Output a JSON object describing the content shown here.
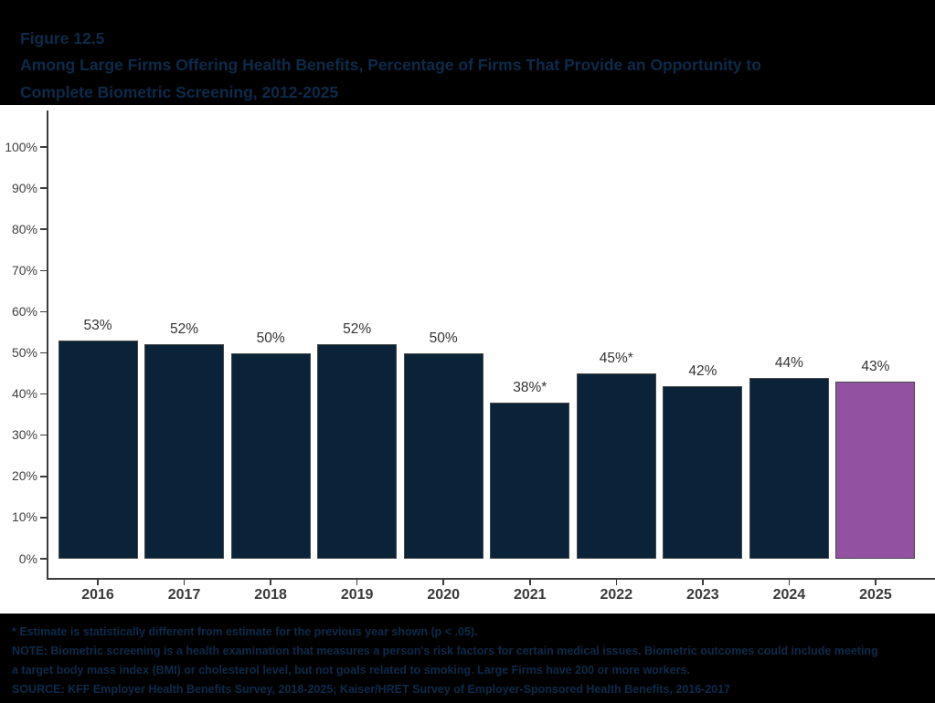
{
  "header": {
    "figure_label": "Figure 12.5",
    "title": "Among Large Firms Offering Health Benefits, Percentage of Firms That Provide an Opportunity to Complete Biometric Screening, 2012-2025"
  },
  "chart_data": {
    "type": "bar",
    "title": "Among Large Firms Offering Health Benefits, Percentage of Firms That Provide an Opportunity to Complete Biometric Screening, 2012-2025",
    "categories": [
      "2016",
      "2017",
      "2018",
      "2019",
      "2020",
      "2021",
      "2022",
      "2023",
      "2024",
      "2025"
    ],
    "values": [
      53,
      52,
      50,
      52,
      50,
      38,
      45,
      42,
      44,
      43
    ],
    "bar_labels": [
      "53%",
      "52%",
      "50%",
      "52%",
      "50%",
      "38%*",
      "45%*",
      "42%",
      "44%",
      "43%"
    ],
    "yticks": [
      "0%",
      "10%",
      "20%",
      "30%",
      "40%",
      "50%",
      "60%",
      "70%",
      "80%",
      "90%",
      "100%"
    ],
    "ylim": [
      0,
      100
    ],
    "xlabel": "",
    "ylabel": "",
    "grid": false,
    "legend": null,
    "highlight_index": 9,
    "highlight_meaning": "2025 value shown in purple"
  },
  "colors": {
    "background": "#000000",
    "plot_background": "#FFFFFF",
    "bar_fill": "#0A2338",
    "highlight_fill": "#9251A1",
    "bar_border": "#474747",
    "axis": "#3C3C3C",
    "tick_label": "#404040",
    "value_label": "#333333",
    "title_text": "#0C2A49",
    "footnote_text": "#0C2A49"
  },
  "footnotes": {
    "significance": "* Estimate is statistically different from estimate for the previous year shown (p < .05).",
    "note": "NOTE: Biometric screening is a health examination that measures a person's risk factors for certain medical issues. Biometric outcomes could include meeting a target body mass index (BMI) or cholesterol level, but not goals related to smoking. Large Firms have 200 or more workers.",
    "source": "SOURCE: KFF Employer Health Benefits Survey, 2018-2025; Kaiser/HRET Survey of Employer-Sponsored Health Benefits, 2016-2017"
  }
}
